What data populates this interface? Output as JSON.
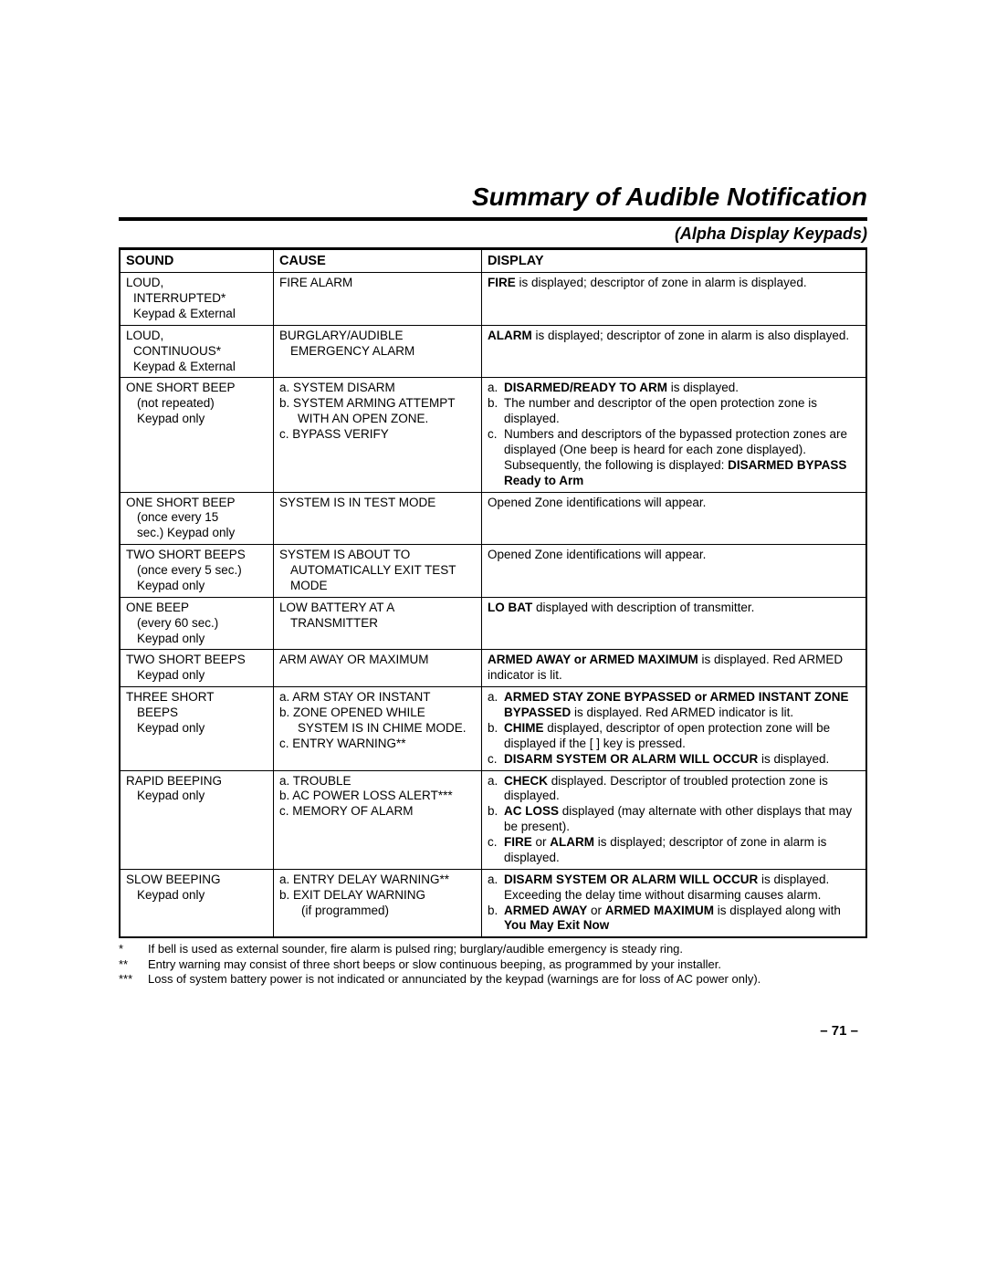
{
  "title": "Summary of Audible Notification",
  "subtitle": "(Alpha Display Keypads)",
  "table": {
    "columns": [
      "SOUND",
      "CAUSE",
      "DISPLAY"
    ],
    "rows": [
      {
        "sound": [
          "LOUD,",
          "  INTERRUPTED*",
          "  Keypad & External"
        ],
        "cause": [
          "FIRE ALARM"
        ],
        "display": [
          {
            "pre_bold": "FIRE",
            "post": " is displayed; descriptor of zone in alarm is displayed."
          }
        ]
      },
      {
        "sound": [
          "LOUD,",
          "  CONTINUOUS*",
          "  Keypad & External"
        ],
        "cause": [
          "BURGLARY/AUDIBLE",
          "   EMERGENCY ALARM"
        ],
        "display": [
          {
            "pre_bold": "ALARM",
            "post": " is displayed; descriptor of zone in alarm is also displayed."
          }
        ]
      },
      {
        "sound": [
          "ONE SHORT BEEP",
          "   (not repeated)",
          "   Keypad only"
        ],
        "cause": [
          "a. SYSTEM DISARM",
          "b. SYSTEM ARMING ATTEMPT",
          "     WITH AN OPEN ZONE.",
          "c. BYPASS VERIFY"
        ],
        "display": [
          {
            "lbl": "a.",
            "pre": "",
            "bold": "DISARMED/READY TO ARM",
            "post": " is displayed."
          },
          {
            "lbl": "b.",
            "pre": "The number and descriptor of the open protection zone is displayed."
          },
          {
            "lbl": "c.",
            "pre": "Numbers and descriptors of the bypassed protection zones are displayed (One beep is heard for each zone displayed). Subsequently, the following is displayed: ",
            "bold_end": "DISARMED BYPASS Ready to Arm"
          }
        ]
      },
      {
        "sound": [
          "ONE SHORT BEEP",
          "   (once every 15",
          "   sec.) Keypad only"
        ],
        "cause": [
          "SYSTEM IS IN TEST MODE"
        ],
        "display": [
          {
            "pre": "Opened Zone identifications will appear."
          }
        ]
      },
      {
        "sound": [
          "TWO SHORT BEEPS",
          "   (once every 5 sec.)",
          "   Keypad only"
        ],
        "cause": [
          "SYSTEM IS ABOUT TO",
          "   AUTOMATICALLY EXIT TEST",
          "   MODE"
        ],
        "display": [
          {
            "pre": "Opened Zone identifications will appear."
          }
        ]
      },
      {
        "sound": [
          "ONE BEEP",
          "   (every 60 sec.)",
          "   Keypad only"
        ],
        "cause": [
          "LOW BATTERY AT A",
          "   TRANSMITTER"
        ],
        "display": [
          {
            "pre_bold": "LO BAT",
            "post": " displayed with description of transmitter."
          }
        ]
      },
      {
        "sound": [
          "TWO SHORT BEEPS",
          "   Keypad only"
        ],
        "cause": [
          "ARM AWAY OR MAXIMUM"
        ],
        "display": [
          {
            "pre_bold": "ARMED AWAY or ARMED MAXIMUM",
            "post": " is displayed. Red ARMED indicator is lit."
          }
        ]
      },
      {
        "sound": [
          "THREE SHORT",
          "   BEEPS",
          "   Keypad only"
        ],
        "cause": [
          "a. ARM STAY OR INSTANT",
          "b. ZONE OPENED WHILE",
          "     SYSTEM IS IN CHIME MODE.",
          "c. ENTRY WARNING**"
        ],
        "display": [
          {
            "lbl": "a.",
            "bold": "ARMED STAY ZONE BYPASSED or ARMED INSTANT ZONE BYPASSED",
            "post": " is displayed. Red ARMED indicator is lit."
          },
          {
            "lbl": "b.",
            "bold": "CHIME",
            "post": " displayed, descriptor of open protection zone will be displayed if the [   ] key is pressed."
          },
          {
            "lbl": "c.",
            "bold": "DISARM SYSTEM OR ALARM WILL OCCUR",
            "post": " is displayed."
          }
        ]
      },
      {
        "sound": [
          "RAPID BEEPING",
          "   Keypad only"
        ],
        "cause": [
          "a. TROUBLE",
          "b. AC POWER LOSS ALERT***",
          "c. MEMORY OF ALARM"
        ],
        "display": [
          {
            "lbl": "a.",
            "bold": "CHECK",
            "post": " displayed.  Descriptor of troubled protection zone is displayed."
          },
          {
            "lbl": "b.",
            "bold": "AC LOSS",
            "post": " displayed (may alternate with other displays that may be present)."
          },
          {
            "lbl": "c.",
            "bold": "FIRE",
            "mid": " or ",
            "bold2": "ALARM",
            "post": " is displayed; descriptor of zone in alarm is displayed."
          }
        ]
      },
      {
        "sound": [
          "SLOW BEEPING",
          "   Keypad only"
        ],
        "cause": [
          "a. ENTRY DELAY WARNING**",
          "b. EXIT DELAY WARNING",
          "      (if programmed)"
        ],
        "display": [
          {
            "lbl": "a.",
            "bold": "DISARM SYSTEM OR ALARM WILL OCCUR",
            "post": " is displayed. Exceeding the delay time without disarming causes alarm."
          },
          {
            "lbl": "b.",
            "bold": "ARMED AWAY",
            "mid": " or ",
            "bold2": "ARMED MAXIMUM",
            "post": " is displayed along with ",
            "bold3": "You May Exit Now"
          }
        ]
      }
    ]
  },
  "footnotes": [
    {
      "sym": "*",
      "text": "If bell is used as external sounder, fire alarm is pulsed ring; burglary/audible emergency is steady ring."
    },
    {
      "sym": "**",
      "text": "Entry warning may consist of three short beeps or slow continuous beeping, as programmed by your installer."
    },
    {
      "sym": "***",
      "text": "Loss of system battery power is not indicated or annunciated by the keypad (warnings are for loss of AC power only)."
    }
  ],
  "page_number": "– 71 –"
}
